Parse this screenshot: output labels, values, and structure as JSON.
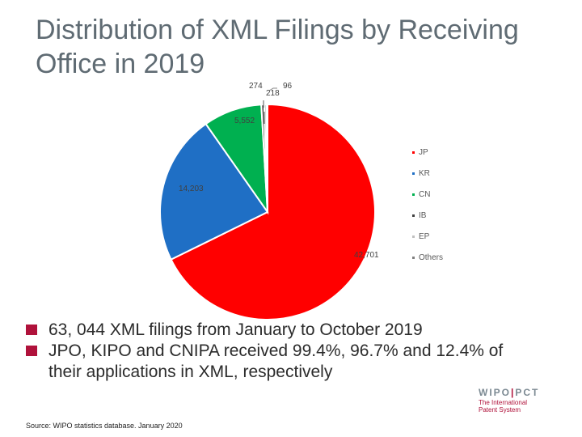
{
  "title": "Distribution of XML Filings by Receiving Office in 2019",
  "chart_data": {
    "type": "pie",
    "title": "",
    "categories": [
      "JP",
      "KR",
      "CN",
      "IB",
      "EP",
      "Others"
    ],
    "values": [
      42701,
      14203,
      5552,
      274,
      218,
      96
    ],
    "labels": [
      "42,701",
      "14,203",
      "5,552",
      "274",
      "218",
      "96"
    ],
    "colors": [
      "#ff0000",
      "#1f6fc5",
      "#00b050",
      "#404040",
      "#c0c0c0",
      "#7f7f7f"
    ],
    "legend_position": "right"
  },
  "bullets": [
    "63, 044 XML filings from January to October 2019",
    "JPO, KIPO and CNIPA received 99.4%, 96.7% and 12.4% of their applications in XML, respectively"
  ],
  "bullet_color": "#b0123b",
  "source": "Source: WIPO statistics database. January 2020"
}
